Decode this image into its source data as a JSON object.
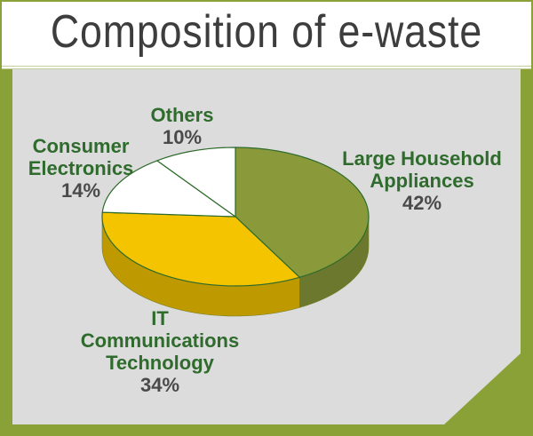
{
  "title": "Composition of e-waste",
  "colors": {
    "background": "#dcdcdc",
    "frame": "#8aa138",
    "large_household": "#8a9a3a",
    "it_communications": "#f5c400",
    "consumer_electronics": "#ffffff",
    "others": "#ffffff",
    "label_text": "#2e6b2c",
    "percent_text": "#4a4a4a"
  },
  "chart_data": {
    "type": "pie",
    "title": "Composition of e-waste",
    "three_d": true,
    "slices": [
      {
        "label_lines": [
          "Large Household",
          "Appliances"
        ],
        "value": 42,
        "percent_label": "42%",
        "color": "#8a9a3a"
      },
      {
        "label_lines": [
          "IT",
          "Communications",
          "Technology"
        ],
        "value": 34,
        "percent_label": "34%",
        "color": "#f5c400"
      },
      {
        "label_lines": [
          "Consumer",
          "Electronics"
        ],
        "value": 14,
        "percent_label": "14%",
        "color": "#ffffff"
      },
      {
        "label_lines": [
          "Others"
        ],
        "value": 10,
        "percent_label": "10%",
        "color": "#ffffff"
      }
    ]
  }
}
